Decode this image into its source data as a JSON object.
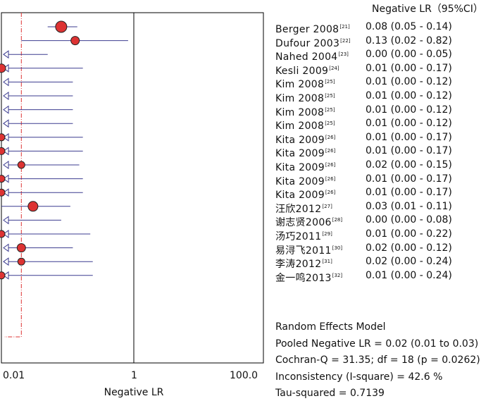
{
  "header": {
    "column_label": "Negative LR（95%CI）"
  },
  "chart_data": {
    "type": "forest",
    "xlabel": "Negative LR",
    "x_scale": "log",
    "xlim": [
      0.01,
      100
    ],
    "x_ticks": [
      "0.01",
      "1",
      "100.0"
    ],
    "reference_line": 1,
    "pooled_line": 0.02,
    "colors": {
      "point": "#dd3333",
      "ci_line": "#3b3b8f",
      "pooled_line": "#dd3333"
    },
    "studies": [
      {
        "name": "Berger 2008",
        "ref": "[21]",
        "est": 0.08,
        "lo": 0.05,
        "hi": 0.14,
        "ci_text": "0.08 (0.05 - 0.14)",
        "size": 8
      },
      {
        "name": "Dufour 2003",
        "ref": "[22]",
        "est": 0.13,
        "lo": 0.02,
        "hi": 0.82,
        "ci_text": "0.13 (0.02 - 0.82)",
        "size": 6
      },
      {
        "name": "Nahed 2004",
        "ref": "[23]",
        "est": 0.0,
        "lo": 0.0,
        "hi": 0.05,
        "ci_text": "0.00 (0.00 - 0.05)",
        "size": 0
      },
      {
        "name": "Kesli 2009",
        "ref": "[24]",
        "est": 0.01,
        "lo": 0.0,
        "hi": 0.17,
        "ci_text": "0.01 (0.00 - 0.17)",
        "size": 6
      },
      {
        "name": "Kim 2008",
        "ref": "[25]",
        "est": 0.01,
        "lo": 0.0,
        "hi": 0.12,
        "ci_text": "0.01 (0.00 - 0.12)",
        "size": 0
      },
      {
        "name": "Kim 2008",
        "ref": "[25]",
        "est": 0.01,
        "lo": 0.0,
        "hi": 0.12,
        "ci_text": "0.01 (0.00 - 0.12)",
        "size": 0
      },
      {
        "name": "Kim 2008",
        "ref": "[25]",
        "est": 0.01,
        "lo": 0.0,
        "hi": 0.12,
        "ci_text": "0.01 (0.00 - 0.12)",
        "size": 0
      },
      {
        "name": "Kim 2008",
        "ref": "[25]",
        "est": 0.01,
        "lo": 0.0,
        "hi": 0.12,
        "ci_text": "0.01 (0.00 - 0.12)",
        "size": 0
      },
      {
        "name": "Kita 2009",
        "ref": "[26]",
        "est": 0.01,
        "lo": 0.0,
        "hi": 0.17,
        "ci_text": "0.01 (0.00 - 0.17)",
        "size": 5
      },
      {
        "name": "Kita 2009",
        "ref": "[26]",
        "est": 0.01,
        "lo": 0.0,
        "hi": 0.17,
        "ci_text": "0.01 (0.00 - 0.17)",
        "size": 5
      },
      {
        "name": "Kita 2009",
        "ref": "[26]",
        "est": 0.02,
        "lo": 0.0,
        "hi": 0.15,
        "ci_text": "0.02 (0.00 - 0.15)",
        "size": 5
      },
      {
        "name": "Kita 2009",
        "ref": "[26]",
        "est": 0.01,
        "lo": 0.0,
        "hi": 0.17,
        "ci_text": "0.01 (0.00 - 0.17)",
        "size": 5
      },
      {
        "name": "Kita 2009",
        "ref": "[26]",
        "est": 0.01,
        "lo": 0.0,
        "hi": 0.17,
        "ci_text": "0.01 (0.00 - 0.17)",
        "size": 5
      },
      {
        "name": "汪欣2012",
        "ref": "[27]",
        "est": 0.03,
        "lo": 0.01,
        "hi": 0.11,
        "ci_text": "0.03 (0.01 - 0.11)",
        "size": 7
      },
      {
        "name": "谢志贤2006",
        "ref": "[28]",
        "est": 0.0,
        "lo": 0.0,
        "hi": 0.08,
        "ci_text": "0.00 (0.00 - 0.08)",
        "size": 0
      },
      {
        "name": "汤巧2011",
        "ref": "[29]",
        "est": 0.01,
        "lo": 0.0,
        "hi": 0.22,
        "ci_text": "0.01 (0.00 - 0.22)",
        "size": 5
      },
      {
        "name": "易浔飞2011",
        "ref": "[30]",
        "est": 0.02,
        "lo": 0.0,
        "hi": 0.12,
        "ci_text": "0.02 (0.00 - 0.12)",
        "size": 6
      },
      {
        "name": "李涛2012",
        "ref": "[31]",
        "est": 0.02,
        "lo": 0.0,
        "hi": 0.24,
        "ci_text": "0.02 (0.00 - 0.24)",
        "size": 5
      },
      {
        "name": "金一鸣2013",
        "ref": "[32]",
        "est": 0.01,
        "lo": 0.0,
        "hi": 0.24,
        "ci_text": "0.01 (0.00 - 0.24)",
        "size": 5
      }
    ],
    "summary": {
      "model": "Random Effects Model",
      "pooled": "Pooled Negative LR = 0.02 (0.01 to 0.03)",
      "cochran": "Cochran-Q = 31.35; df =  18 (p = 0.0262)",
      "inconsistency": "Inconsistency (I-square) = 42.6 %",
      "tau": "Tau-squared = 0.7139"
    }
  }
}
